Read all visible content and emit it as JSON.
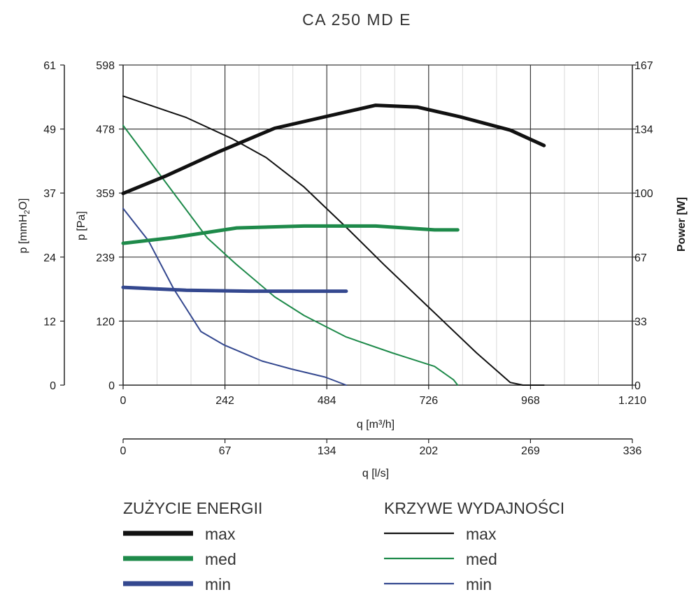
{
  "chart_data": {
    "type": "line",
    "title": "CA 250 MD E",
    "x_axis": {
      "label": "q [m³/h]",
      "ticks": [
        "0",
        "242",
        "484",
        "726",
        "968",
        "1.210"
      ],
      "range": [
        0,
        1210
      ]
    },
    "x2_axis": {
      "label": "q [l/s]",
      "ticks": [
        "0",
        "67",
        "134",
        "202",
        "269",
        "336"
      ]
    },
    "y_axis": {
      "label": "p [Pa]",
      "ticks": [
        "0",
        "120",
        "239",
        "359",
        "478",
        "598"
      ],
      "range": [
        0,
        598
      ]
    },
    "y_outer_axis": {
      "label_main": "p [mmH",
      "label_sub": "2",
      "label_end": "O]",
      "ticks": [
        "0",
        "12",
        "24",
        "37",
        "49",
        "61"
      ]
    },
    "y_right_axis": {
      "label": "Power [W]",
      "ticks": [
        "0",
        "33",
        "67",
        "100",
        "134",
        "167"
      ],
      "range": [
        0,
        167
      ]
    },
    "series": [
      {
        "id": "pressure-max",
        "name": "max",
        "group": "KRZYWE WYDAJNOŚCI",
        "axis": "pressure",
        "color": "#111111",
        "width": 2,
        "x": [
          0,
          150,
          260,
          340,
          430,
          530,
          620,
          720,
          840,
          920,
          950,
          980,
          990,
          1000
        ],
        "y": [
          540,
          500,
          460,
          425,
          370,
          295,
          225,
          150,
          60,
          5,
          0,
          0,
          0,
          0
        ]
      },
      {
        "id": "pressure-med",
        "name": "med",
        "group": "KRZYWE WYDAJNOŚCI",
        "axis": "pressure",
        "color": "#1e8a4a",
        "width": 2,
        "x": [
          0,
          100,
          200,
          270,
          360,
          430,
          530,
          640,
          740,
          785,
          795
        ],
        "y": [
          485,
          380,
          275,
          225,
          165,
          130,
          90,
          60,
          35,
          10,
          0
        ]
      },
      {
        "id": "pressure-min",
        "name": "min",
        "group": "KRZYWE WYDAJNOŚCI",
        "axis": "pressure",
        "color": "#34488f",
        "width": 2,
        "x": [
          0,
          60,
          120,
          185,
          240,
          330,
          400,
          480,
          530
        ],
        "y": [
          330,
          270,
          180,
          100,
          75,
          45,
          30,
          15,
          0
        ]
      },
      {
        "id": "power-max",
        "name": "max",
        "group": "ZUŻYCIE ENERGII",
        "axis": "power",
        "color": "#111111",
        "width": 5,
        "x": [
          0,
          100,
          230,
          360,
          480,
          600,
          700,
          800,
          920,
          1000
        ],
        "y": [
          100,
          109,
          122,
          134,
          140,
          146,
          145,
          140,
          133,
          125
        ]
      },
      {
        "id": "power-med",
        "name": "med",
        "group": "ZUŻYCIE ENERGII",
        "axis": "power",
        "color": "#1e8a4a",
        "width": 5,
        "x": [
          0,
          120,
          270,
          430,
          600,
          740,
          795
        ],
        "y": [
          74,
          77,
          82,
          83,
          83,
          81,
          81
        ]
      },
      {
        "id": "power-min",
        "name": "min",
        "group": "ZUŻYCIE ENERGII",
        "axis": "power",
        "color": "#34488f",
        "width": 5,
        "x": [
          0,
          150,
          300,
          530
        ],
        "y": [
          51,
          49.5,
          49,
          49
        ]
      }
    ]
  },
  "legend": {
    "energy_title": "ZUŻYCIE ENERGII",
    "curves_title": "KRZYWE WYDAJNOŚCI",
    "energy_items": [
      {
        "label": "max",
        "color": "#111111"
      },
      {
        "label": "med",
        "color": "#1e8a4a"
      },
      {
        "label": "min",
        "color": "#34488f"
      }
    ],
    "curve_items": [
      {
        "label": "max",
        "color": "#111111"
      },
      {
        "label": "med",
        "color": "#1e8a4a"
      },
      {
        "label": "min",
        "color": "#34488f"
      }
    ]
  }
}
